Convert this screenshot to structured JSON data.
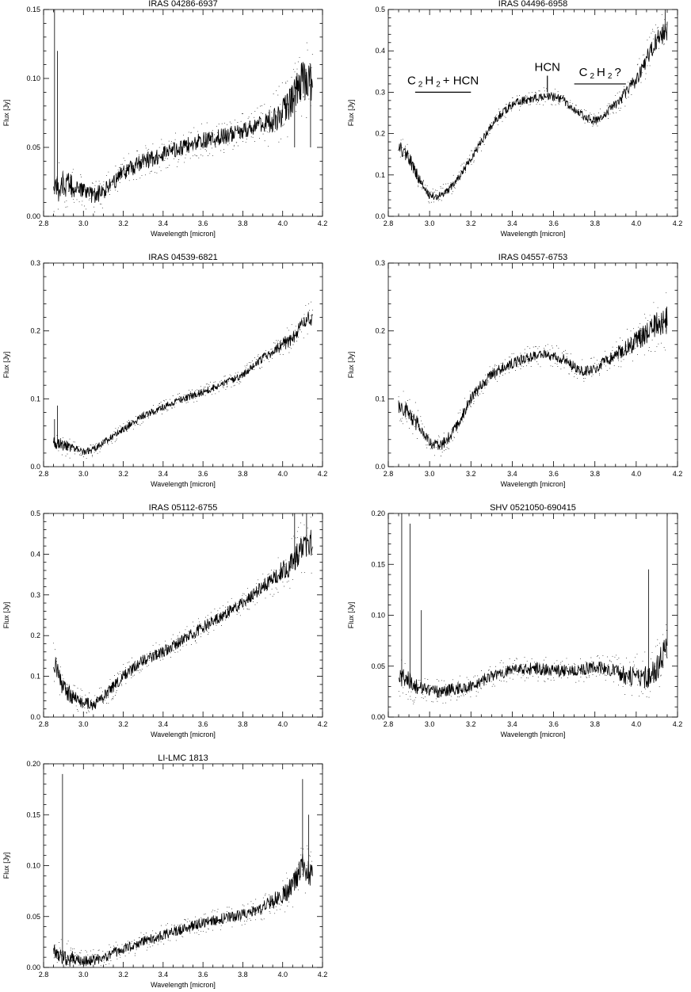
{
  "chart_data": [
    {
      "type": "line",
      "title": "IRAS 04286-6937",
      "xlabel": "Wavelength [micron]",
      "ylabel": "Flux [Jy]",
      "xlim": [
        2.8,
        4.2
      ],
      "ylim": [
        0,
        0.15
      ],
      "xticks": [
        "2.8",
        "3.0",
        "3.2",
        "3.4",
        "3.6",
        "3.8",
        "4.0",
        "4.2"
      ],
      "yticks": [
        "0.00",
        "0.05",
        "0.10",
        "0.15"
      ],
      "x": [
        2.85,
        2.9,
        2.95,
        3.0,
        3.05,
        3.1,
        3.15,
        3.2,
        3.25,
        3.3,
        3.35,
        3.4,
        3.5,
        3.6,
        3.7,
        3.8,
        3.9,
        3.95,
        4.0,
        4.05,
        4.1,
        4.15
      ],
      "y": [
        0.015,
        0.025,
        0.02,
        0.018,
        0.015,
        0.018,
        0.025,
        0.032,
        0.036,
        0.04,
        0.042,
        0.045,
        0.05,
        0.055,
        0.058,
        0.062,
        0.066,
        0.07,
        0.075,
        0.085,
        0.1,
        0.095
      ],
      "noise": 0.006,
      "spikes": [
        [
          2.855,
          0.15
        ],
        [
          2.87,
          0.12
        ],
        [
          4.06,
          0.05
        ],
        [
          4.14,
          0.05
        ]
      ],
      "annotations": []
    },
    {
      "type": "line",
      "title": "IRAS 04496-6958",
      "xlabel": "Wavelength [micron]",
      "ylabel": "Flux [Jy]",
      "xlim": [
        2.8,
        4.2
      ],
      "ylim": [
        0,
        0.5
      ],
      "xticks": [
        "2.8",
        "3.0",
        "3.2",
        "3.4",
        "3.6",
        "3.8",
        "4.0",
        "4.2"
      ],
      "yticks": [
        "0.0",
        "0.1",
        "0.2",
        "0.3",
        "0.4",
        "0.5"
      ],
      "x": [
        2.85,
        2.9,
        2.95,
        3.0,
        3.05,
        3.1,
        3.15,
        3.2,
        3.25,
        3.3,
        3.35,
        3.4,
        3.45,
        3.5,
        3.55,
        3.6,
        3.65,
        3.7,
        3.75,
        3.8,
        3.85,
        3.9,
        3.95,
        4.0,
        4.05,
        4.1,
        4.15
      ],
      "y": [
        0.17,
        0.14,
        0.09,
        0.05,
        0.05,
        0.07,
        0.1,
        0.14,
        0.18,
        0.22,
        0.25,
        0.27,
        0.28,
        0.285,
        0.29,
        0.29,
        0.28,
        0.26,
        0.24,
        0.23,
        0.25,
        0.27,
        0.3,
        0.33,
        0.38,
        0.43,
        0.45
      ],
      "noise": 0.01,
      "spikes": [
        [
          4.14,
          0.5
        ]
      ],
      "annotations": [
        {
          "parts": [
            [
              "C",
              ""
            ],
            [
              "2",
              "sub"
            ],
            [
              "H",
              ""
            ],
            [
              "2",
              "sub"
            ],
            [
              "+ HCN",
              ""
            ]
          ],
          "x0": 2.93,
          "x1": 3.2,
          "y": 0.3,
          "type": "band"
        },
        {
          "parts": [
            [
              "HCN",
              ""
            ]
          ],
          "x": 3.57,
          "y0": 0.3,
          "y1": 0.34,
          "type": "line"
        },
        {
          "parts": [
            [
              "C",
              ""
            ],
            [
              "2",
              "sub"
            ],
            [
              "H",
              ""
            ],
            [
              "2",
              "sub"
            ],
            [
              "?",
              ""
            ]
          ],
          "x0": 3.7,
          "x1": 3.95,
          "y": 0.32,
          "type": "band"
        }
      ]
    },
    {
      "type": "line",
      "title": "IRAS 04539-6821",
      "xlabel": "Wavelength [micron]",
      "ylabel": "Flux [Jy]",
      "xlim": [
        2.8,
        4.2
      ],
      "ylim": [
        0,
        0.3
      ],
      "xticks": [
        "2.8",
        "3.0",
        "3.2",
        "3.4",
        "3.6",
        "3.8",
        "4.0",
        "4.2"
      ],
      "yticks": [
        "0.0",
        "0.1",
        "0.2",
        "0.3"
      ],
      "x": [
        2.85,
        2.9,
        2.95,
        3.0,
        3.05,
        3.1,
        3.2,
        3.3,
        3.4,
        3.5,
        3.6,
        3.7,
        3.8,
        3.9,
        4.0,
        4.05,
        4.1,
        4.15
      ],
      "y": [
        0.035,
        0.032,
        0.028,
        0.022,
        0.025,
        0.035,
        0.055,
        0.075,
        0.088,
        0.1,
        0.11,
        0.122,
        0.135,
        0.16,
        0.18,
        0.19,
        0.21,
        0.22
      ],
      "noise": 0.005,
      "spikes": [
        [
          2.855,
          0.07
        ],
        [
          2.87,
          0.09
        ]
      ],
      "annotations": []
    },
    {
      "type": "line",
      "title": "IRAS 04557-6753",
      "xlabel": "Wavelength [micron]",
      "ylabel": "Flux [Jy]",
      "xlim": [
        2.8,
        4.2
      ],
      "ylim": [
        0,
        0.3
      ],
      "xticks": [
        "2.8",
        "3.0",
        "3.2",
        "3.4",
        "3.6",
        "3.8",
        "4.0",
        "4.2"
      ],
      "yticks": [
        "0.0",
        "0.1",
        "0.2",
        "0.3"
      ],
      "x": [
        2.85,
        2.9,
        2.95,
        3.0,
        3.05,
        3.1,
        3.15,
        3.2,
        3.25,
        3.3,
        3.35,
        3.4,
        3.45,
        3.5,
        3.55,
        3.6,
        3.65,
        3.7,
        3.75,
        3.8,
        3.85,
        3.9,
        3.95,
        4.0,
        4.05,
        4.1,
        4.15
      ],
      "y": [
        0.09,
        0.08,
        0.06,
        0.035,
        0.03,
        0.045,
        0.07,
        0.1,
        0.12,
        0.135,
        0.145,
        0.152,
        0.158,
        0.162,
        0.165,
        0.163,
        0.158,
        0.148,
        0.14,
        0.145,
        0.155,
        0.165,
        0.175,
        0.185,
        0.195,
        0.21,
        0.215
      ],
      "noise": 0.008,
      "spikes": [],
      "annotations": []
    },
    {
      "type": "line",
      "title": "IRAS 05112-6755",
      "xlabel": "Wavelength [micron]",
      "ylabel": "Flux [Jy]",
      "xlim": [
        2.8,
        4.2
      ],
      "ylim": [
        0,
        0.5
      ],
      "xticks": [
        "2.8",
        "3.0",
        "3.2",
        "3.4",
        "3.6",
        "3.8",
        "4.0",
        "4.2"
      ],
      "yticks": [
        "0.0",
        "0.1",
        "0.2",
        "0.3",
        "0.4",
        "0.5"
      ],
      "x": [
        2.85,
        2.9,
        2.95,
        3.0,
        3.05,
        3.1,
        3.2,
        3.3,
        3.4,
        3.5,
        3.6,
        3.7,
        3.8,
        3.9,
        4.0,
        4.05,
        4.1,
        4.15
      ],
      "y": [
        0.14,
        0.07,
        0.05,
        0.035,
        0.03,
        0.05,
        0.1,
        0.14,
        0.16,
        0.19,
        0.22,
        0.25,
        0.28,
        0.32,
        0.36,
        0.38,
        0.42,
        0.43
      ],
      "noise": 0.014,
      "spikes": [
        [
          4.06,
          0.5
        ],
        [
          4.12,
          0.5
        ]
      ],
      "annotations": []
    },
    {
      "type": "line",
      "title": "SHV 0521050-690415",
      "xlabel": "Wavelength [micron]",
      "ylabel": "Flux [Jy]",
      "xlim": [
        2.8,
        4.2
      ],
      "ylim": [
        0,
        0.2
      ],
      "xticks": [
        "2.8",
        "3.0",
        "3.2",
        "3.4",
        "3.6",
        "3.8",
        "4.0",
        "4.2"
      ],
      "yticks": [
        "0.00",
        "0.05",
        "0.10",
        "0.15",
        "0.20"
      ],
      "x": [
        2.85,
        2.9,
        2.95,
        3.0,
        3.05,
        3.1,
        3.2,
        3.3,
        3.4,
        3.5,
        3.6,
        3.7,
        3.8,
        3.9,
        3.95,
        4.0,
        4.05,
        4.1,
        4.15
      ],
      "y": [
        0.04,
        0.035,
        0.03,
        0.025,
        0.025,
        0.027,
        0.03,
        0.04,
        0.047,
        0.048,
        0.046,
        0.045,
        0.05,
        0.045,
        0.04,
        0.04,
        0.04,
        0.05,
        0.07
      ],
      "noise": 0.006,
      "spikes": [
        [
          2.865,
          0.2
        ],
        [
          2.905,
          0.19
        ],
        [
          2.96,
          0.105
        ],
        [
          4.06,
          0.145
        ],
        [
          4.15,
          0.2
        ]
      ],
      "annotations": []
    },
    {
      "type": "line",
      "title": "LI-LMC 1813",
      "xlabel": "Wavelength [micron]",
      "ylabel": "Flux [Jy]",
      "xlim": [
        2.8,
        4.2
      ],
      "ylim": [
        0,
        0.2
      ],
      "xticks": [
        "2.8",
        "3.0",
        "3.2",
        "3.4",
        "3.6",
        "3.8",
        "4.0",
        "4.2"
      ],
      "yticks": [
        "0.00",
        "0.05",
        "0.10",
        "0.15",
        "0.20"
      ],
      "x": [
        2.85,
        2.9,
        2.95,
        3.0,
        3.05,
        3.1,
        3.2,
        3.3,
        3.4,
        3.5,
        3.6,
        3.7,
        3.8,
        3.9,
        3.95,
        4.0,
        4.05,
        4.1,
        4.15
      ],
      "y": [
        0.015,
        0.01,
        0.008,
        0.006,
        0.007,
        0.01,
        0.018,
        0.025,
        0.032,
        0.038,
        0.044,
        0.048,
        0.052,
        0.058,
        0.065,
        0.07,
        0.08,
        0.1,
        0.09
      ],
      "noise": 0.005,
      "spikes": [
        [
          2.895,
          0.19
        ],
        [
          4.1,
          0.185
        ],
        [
          4.13,
          0.15
        ]
      ],
      "annotations": []
    }
  ]
}
